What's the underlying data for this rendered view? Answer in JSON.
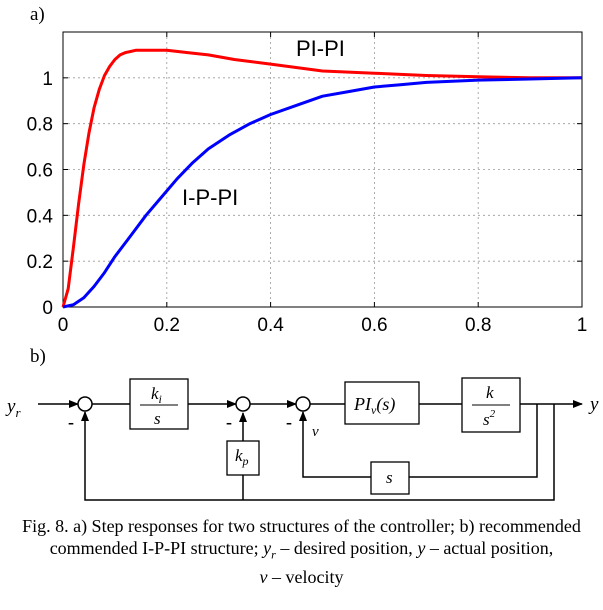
{
  "panel_a_label": "a)",
  "panel_b_label": "b)",
  "chart_data": {
    "type": "line",
    "xlim": [
      0,
      1
    ],
    "ylim": [
      0,
      1.2
    ],
    "xticks": [
      "0",
      "0.2",
      "0.4",
      "0.6",
      "0.8",
      "1"
    ],
    "yticks": [
      "0",
      "0.2",
      "0.4",
      "0.6",
      "0.8",
      "1"
    ],
    "grid": true,
    "series": [
      {
        "name": "PI-PI",
        "color": "#ff0000",
        "x": [
          0,
          0.01,
          0.02,
          0.03,
          0.04,
          0.05,
          0.06,
          0.07,
          0.08,
          0.09,
          0.1,
          0.11,
          0.12,
          0.13,
          0.14,
          0.15,
          0.17,
          0.2,
          0.24,
          0.28,
          0.33,
          0.4,
          0.5,
          0.6,
          0.7,
          0.8,
          0.9,
          1.0
        ],
        "y": [
          0,
          0.08,
          0.26,
          0.45,
          0.62,
          0.76,
          0.87,
          0.95,
          1.01,
          1.05,
          1.08,
          1.1,
          1.11,
          1.115,
          1.12,
          1.12,
          1.12,
          1.12,
          1.11,
          1.1,
          1.08,
          1.06,
          1.03,
          1.02,
          1.01,
          1.005,
          1.0,
          1.0
        ]
      },
      {
        "name": "I-P-PI",
        "color": "#0000ff",
        "x": [
          0,
          0.02,
          0.04,
          0.06,
          0.08,
          0.1,
          0.13,
          0.16,
          0.19,
          0.22,
          0.25,
          0.28,
          0.32,
          0.36,
          0.4,
          0.45,
          0.5,
          0.55,
          0.6,
          0.65,
          0.7,
          0.8,
          0.9,
          1.0
        ],
        "y": [
          0,
          0.01,
          0.04,
          0.09,
          0.15,
          0.22,
          0.31,
          0.4,
          0.48,
          0.56,
          0.63,
          0.69,
          0.75,
          0.8,
          0.84,
          0.88,
          0.92,
          0.94,
          0.96,
          0.97,
          0.98,
          0.99,
          0.995,
          1.0
        ]
      }
    ]
  },
  "diagram": {
    "input": "y",
    "input_sub": "r",
    "output": "y",
    "ki_num": "k",
    "ki_num_sub": "i",
    "ki_den": "s",
    "kp": "k",
    "kp_sub": "p",
    "piv": "PI",
    "piv_sub": "v",
    "piv_arg": "(s)",
    "plant_num": "k",
    "plant_den": "s",
    "plant_den_sup": "2",
    "fb_block": "s",
    "v_label": "v",
    "minus": "-"
  },
  "caption": {
    "line1": "Fig. 8. a) Step responses for two structures of the controller; b) recommended",
    "line2_a": "commended I-P-PI structure; ",
    "yr": "y",
    "yr_sub": "r",
    "line2_b": " – desired position, ",
    "y": "y",
    "line2_c": " – actual position,",
    "v": "v",
    "line3": " – velocity"
  }
}
